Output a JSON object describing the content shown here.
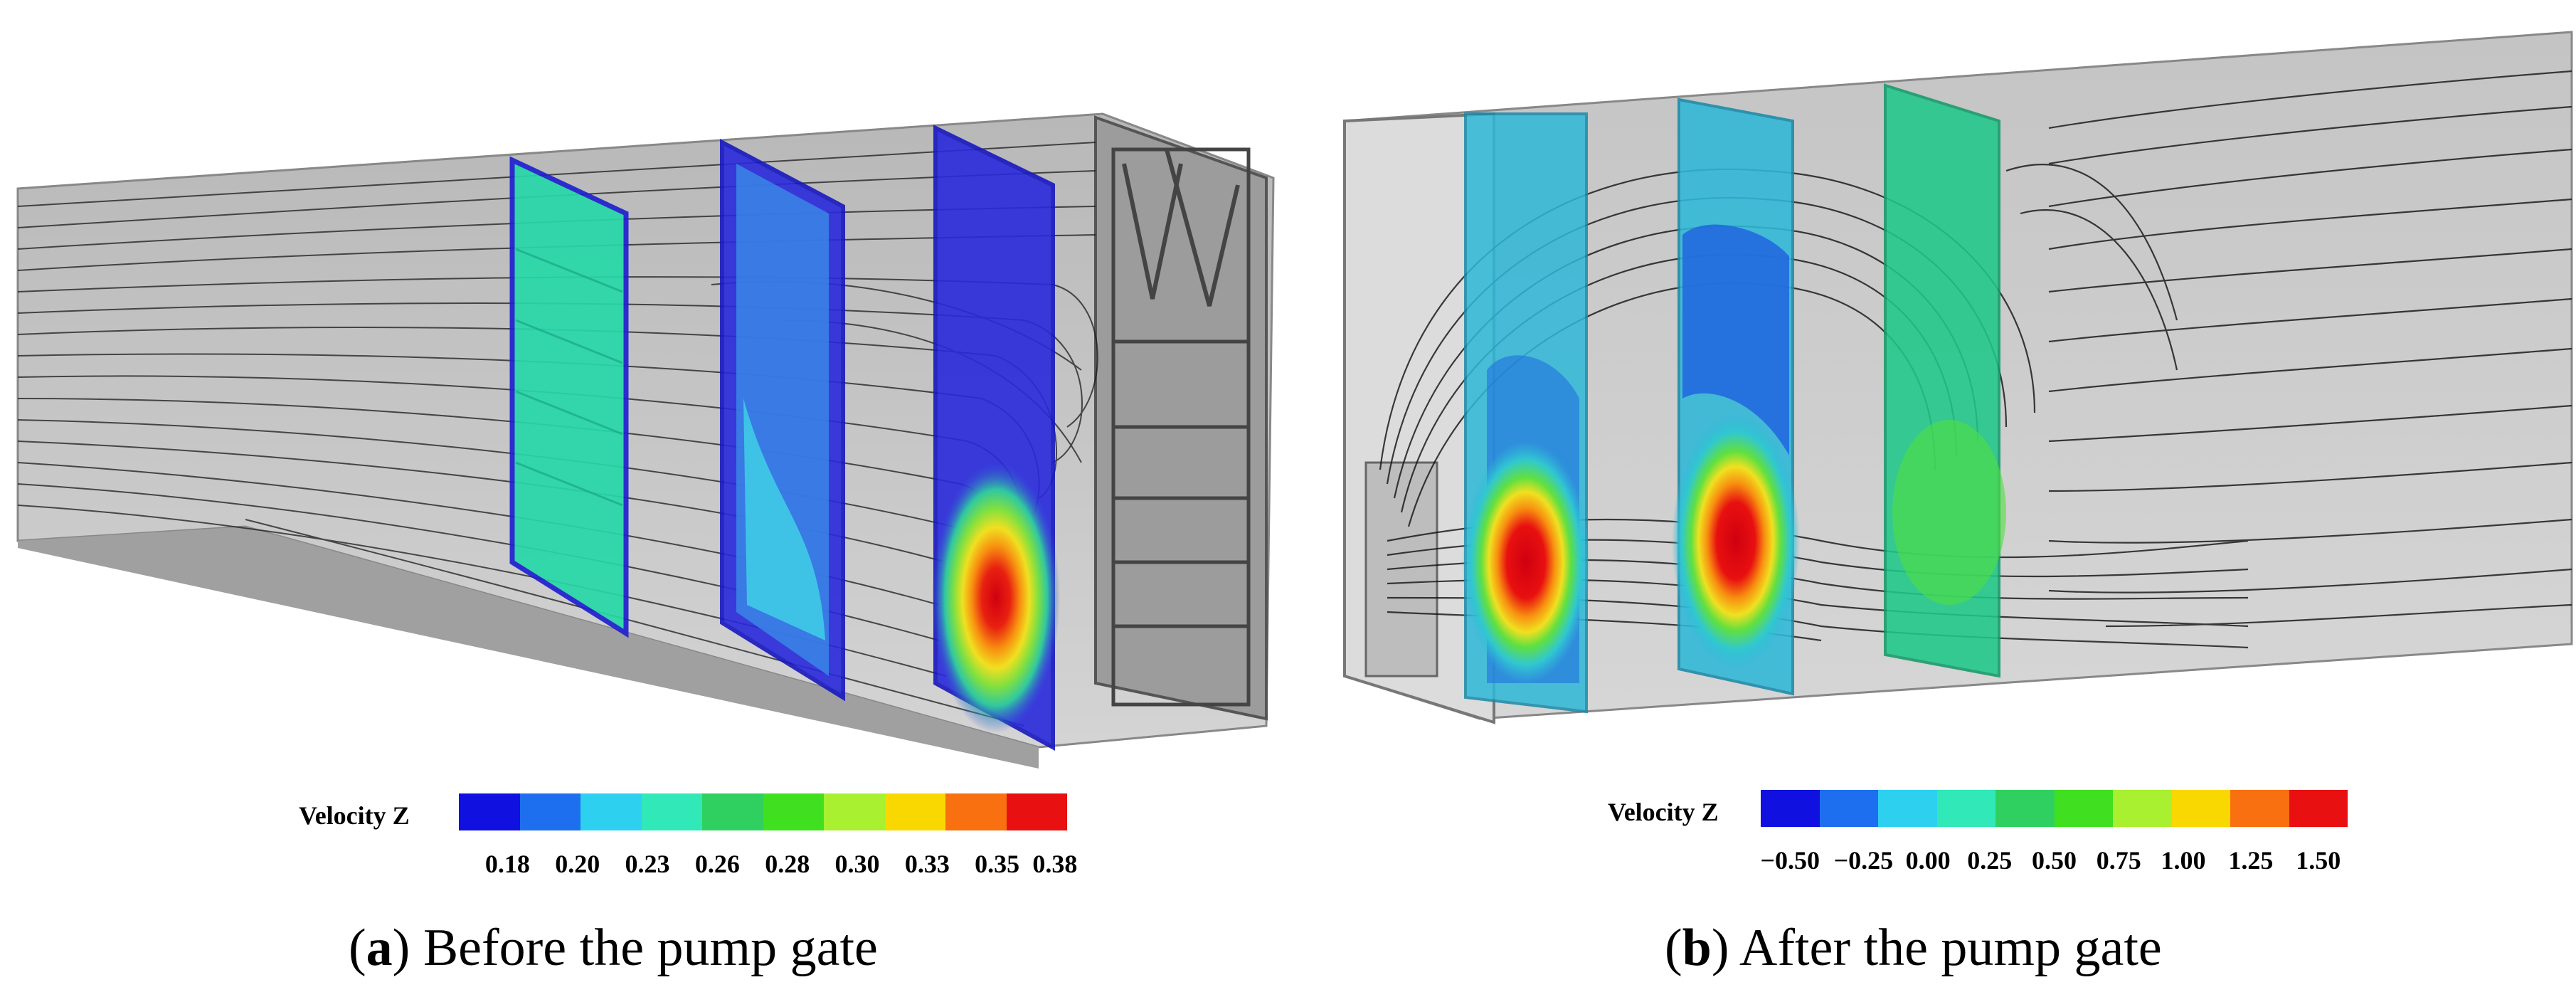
{
  "panels": [
    {
      "id": "a",
      "letter": "a",
      "caption": "Before the pump gate",
      "legend_title": "Velocity Z",
      "legend_ticks": [
        "0.18",
        "0.20",
        "0.23",
        "0.26",
        "0.28",
        "0.30",
        "0.33",
        "0.35",
        "0.38"
      ],
      "legend_colors": [
        "#1010e0",
        "#1e6ef0",
        "#2ed0f0",
        "#30e8b8",
        "#30d060",
        "#40e020",
        "#a8f030",
        "#f8d800",
        "#f87010",
        "#e81010"
      ]
    },
    {
      "id": "b",
      "letter": "b",
      "caption": "After the pump gate",
      "legend_title": "Velocity Z",
      "legend_ticks": [
        "−0.50",
        "−0.25",
        "0.00",
        "0.25",
        "0.50",
        "0.75",
        "1.00",
        "1.25",
        "1.50"
      ],
      "legend_colors": [
        "#1010e0",
        "#1e6ef0",
        "#2ed0f0",
        "#30e8b8",
        "#30d060",
        "#40e020",
        "#a8f030",
        "#f8d800",
        "#f87010",
        "#e81010"
      ]
    }
  ],
  "caption_parens": {
    "open": "(",
    "close": ")"
  }
}
